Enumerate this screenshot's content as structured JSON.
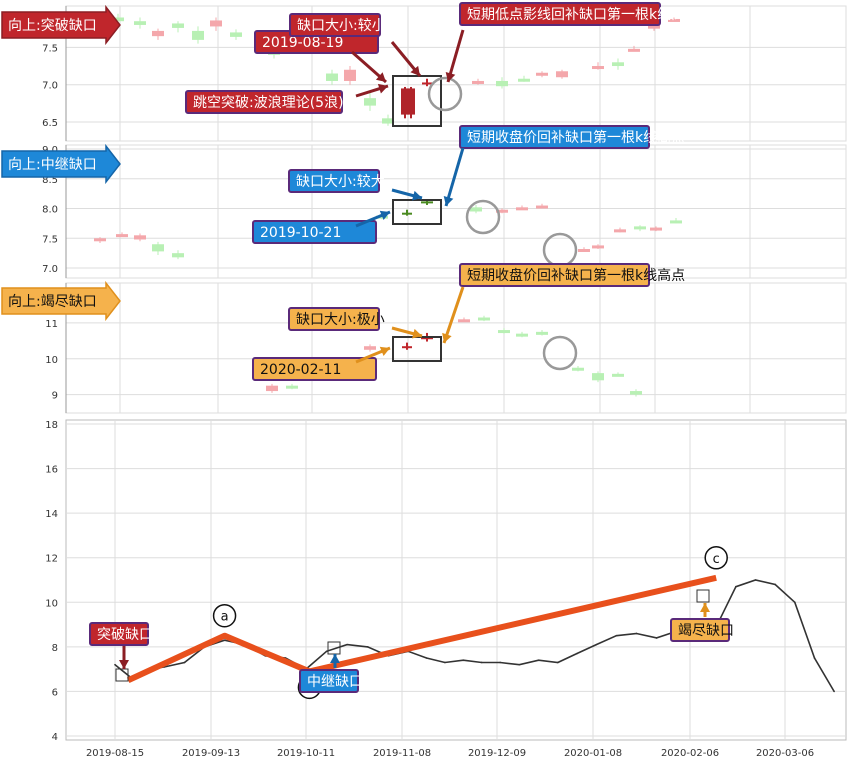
{
  "colors": {
    "red_fill": "#c0262c",
    "red_dark": "#8b1e24",
    "blue_fill": "#1e88d8",
    "blue_dark": "#1565a8",
    "orange_fill": "#f5b24c",
    "orange_dark": "#e0901c",
    "label_border": "#5a2a7a",
    "up_candle": "#f4a7ab",
    "down_candle": "#b8f0b4",
    "trend_line": "#e8501c",
    "price_line": "#333333",
    "grid": "#dddddd"
  },
  "panels": [
    {
      "tag": "向上:突破缺口",
      "theme": "red",
      "date_label": "2019-08-19",
      "size_label": "缺口大小:较小",
      "fill_label": "短期低点影线回补缺口第一根k线高点",
      "extra_label": "跳空突破:波浪理论(5浪)",
      "yticks": [
        "7.5",
        "7.0",
        "6.5"
      ],
      "ytick_vals": [
        7.5,
        7.0,
        6.5
      ],
      "y_range": [
        6.3,
        8.0
      ]
    },
    {
      "tag": "向上:中继缺口",
      "theme": "blue",
      "date_label": "2019-10-21",
      "size_label": "缺口大小:较大",
      "fill_label": "短期收盘价回补缺口第一根k线高点",
      "yticks": [
        "9.0",
        "8.5",
        "8.0",
        "7.5",
        "7.0"
      ],
      "ytick_vals": [
        9.0,
        8.5,
        8.0,
        7.5,
        7.0
      ],
      "y_range": [
        6.9,
        9.0
      ]
    },
    {
      "tag": "向上:竭尽缺口",
      "theme": "orange",
      "date_label": "2020-02-11",
      "size_label": "缺口大小:极小",
      "fill_label": "短期收盘价回补缺口第一根k线高点",
      "yticks": [
        "11",
        "10",
        "9"
      ],
      "ytick_vals": [
        11,
        10,
        9
      ],
      "y_range": [
        8.6,
        12.0
      ]
    }
  ],
  "chart_data": {
    "type": "line",
    "x": [
      "2019-08-15",
      "2019-08-20",
      "2019-08-26",
      "2019-08-30",
      "2019-09-05",
      "2019-09-11",
      "2019-09-17",
      "2019-09-23",
      "2019-09-29",
      "2019-10-05",
      "2019-10-11",
      "2019-10-17",
      "2019-10-23",
      "2019-10-29",
      "2019-11-04",
      "2019-11-10",
      "2019-11-16",
      "2019-11-22",
      "2019-11-28",
      "2019-12-04",
      "2019-12-10",
      "2019-12-16",
      "2019-12-22",
      "2019-12-28",
      "2020-01-03",
      "2020-01-09",
      "2020-01-15",
      "2020-01-21",
      "2020-01-27",
      "2020-02-02",
      "2020-02-08",
      "2020-02-14",
      "2020-02-20",
      "2020-02-26",
      "2020-03-03",
      "2020-03-09",
      "2020-03-15",
      "2020-03-21"
    ],
    "series": [
      {
        "values": [
          7.2,
          6.6,
          7.0,
          7.1,
          7.3,
          8.0,
          8.3,
          8.1,
          7.6,
          7.5,
          7.0,
          7.8,
          8.1,
          8.0,
          7.6,
          7.8,
          7.5,
          7.3,
          7.4,
          7.3,
          7.3,
          7.2,
          7.4,
          7.3,
          7.7,
          8.1,
          8.5,
          8.6,
          8.4,
          8.7,
          9.0,
          8.9,
          10.7,
          11.0,
          10.8,
          10.0,
          7.5,
          6.0
        ]
      }
    ],
    "xticks": [
      "2019-08-15",
      "2019-09-13",
      "2019-10-11",
      "2019-11-08",
      "2019-12-09",
      "2020-01-08",
      "2020-02-06",
      "2020-03-06"
    ],
    "yticks": [
      4,
      6,
      8,
      10,
      12,
      14,
      16,
      18
    ],
    "ylim": [
      4,
      18
    ],
    "grid": true,
    "trend_points": [
      {
        "label": "",
        "x": "2019-08-19",
        "y": 6.5
      },
      {
        "label": "a",
        "x": "2019-09-17",
        "y": 8.5
      },
      {
        "label": "b",
        "x": "2019-10-12",
        "y": 6.9
      },
      {
        "label": "c",
        "x": "2020-02-14",
        "y": 11.1
      }
    ],
    "gap_callouts": [
      {
        "text": "突破缺口",
        "theme": "red"
      },
      {
        "text": "中继缺口",
        "theme": "blue"
      },
      {
        "text": "竭尽缺口",
        "theme": "orange"
      }
    ]
  }
}
